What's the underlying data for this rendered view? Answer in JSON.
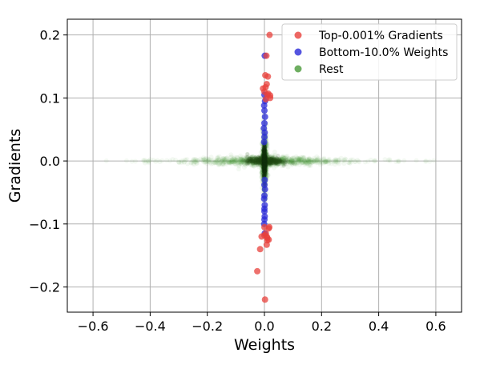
{
  "chart_data": {
    "type": "scatter",
    "title": "",
    "xlabel": "Weights",
    "ylabel": "Gradients",
    "xlim": [
      -0.69,
      0.69
    ],
    "ylim": [
      -0.24,
      0.225
    ],
    "grid": true,
    "legend_position": "top-right",
    "xticks": [
      -0.6,
      -0.4,
      -0.2,
      0.0,
      0.2,
      0.4,
      0.6
    ],
    "yticks": [
      -0.2,
      -0.1,
      0.0,
      0.1,
      0.2
    ],
    "xtick_labels": [
      "−0.6",
      "−0.4",
      "−0.2",
      "0.0",
      "0.2",
      "0.4",
      "0.6"
    ],
    "ytick_labels": [
      "−0.2",
      "−0.1",
      "0.0",
      "0.1",
      "0.2"
    ],
    "series": [
      {
        "name": "Top-0.001% Gradients",
        "color": "#e8413c",
        "x": [
          0.018,
          0.007,
          0.003,
          0.012,
          0.008,
          0.004,
          -0.005,
          0.0,
          0.013,
          0.01,
          0.02,
          0.02,
          0.005,
          0.0,
          0.017,
          0.015,
          0.005,
          0.0,
          -0.01,
          0.008,
          0.01,
          0.015,
          0.01,
          0.008,
          -0.015,
          -0.025,
          0.002
        ],
        "y": [
          0.2,
          0.167,
          0.136,
          0.134,
          0.122,
          0.117,
          0.115,
          0.11,
          0.107,
          0.105,
          0.104,
          0.1,
          0.098,
          -0.105,
          -0.105,
          -0.107,
          -0.115,
          -0.118,
          -0.12,
          -0.12,
          -0.122,
          -0.125,
          -0.126,
          -0.133,
          -0.14,
          -0.175,
          -0.22
        ]
      },
      {
        "name": "Bottom-10.0% Weights",
        "color": "#2a2ad8",
        "x": [
          0.001,
          0.0,
          0.002,
          -0.001,
          0.0,
          0.002,
          0.0,
          -0.002,
          0.001,
          0.0,
          -0.001,
          0.001,
          0.0,
          0.002,
          0.0,
          -0.001,
          0.001,
          0.0,
          0.0,
          0.001,
          0.0,
          -0.001,
          0.001
        ],
        "y": [
          0.167,
          0.105,
          0.095,
          0.088,
          0.08,
          0.07,
          0.06,
          0.052,
          0.045,
          0.038,
          0.03,
          -0.03,
          -0.038,
          -0.045,
          -0.055,
          -0.06,
          -0.07,
          -0.076,
          -0.08,
          -0.088,
          -0.093,
          -0.1,
          -0.115
        ]
      },
      {
        "name": "Rest",
        "color": "#4a9a3a",
        "description_points": [],
        "x_spread": 0.62,
        "y_spread": 0.08
      }
    ]
  }
}
